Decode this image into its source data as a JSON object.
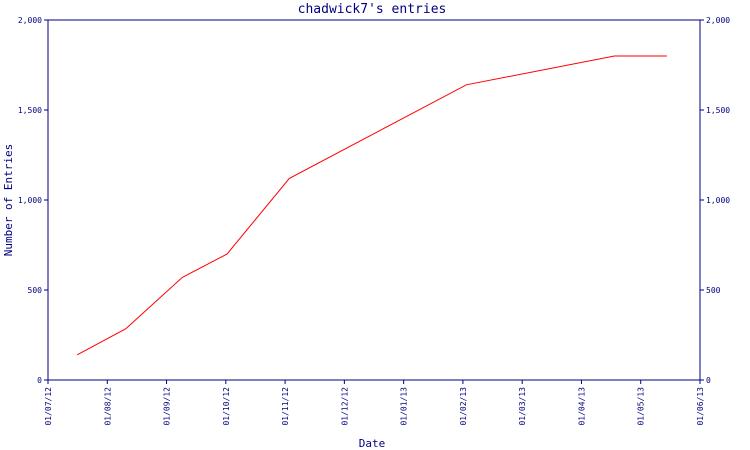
{
  "chart_data": {
    "type": "line",
    "title": "chadwick7's entries",
    "xlabel": "Date",
    "ylabel": "Number of Entries",
    "x_ticks": [
      "01/07/12",
      "01/08/12",
      "01/09/12",
      "01/10/12",
      "01/11/12",
      "01/12/12",
      "01/01/13",
      "01/02/13",
      "01/03/13",
      "01/04/13",
      "01/05/13",
      "01/06/13"
    ],
    "y_ticks": [
      "0",
      "500",
      "1,000",
      "1,500",
      "2,000"
    ],
    "ylim": [
      0,
      2000
    ],
    "xlim": [
      "2012-07-01",
      "2013-06-01"
    ],
    "grid": false,
    "line_color": "#ff0000",
    "axis_color": "#000080",
    "series": [
      {
        "x": [
          "2012-07-16",
          "2012-08-10",
          "2012-09-08",
          "2012-10-01",
          "2012-11-02",
          "2013-02-01",
          "2013-04-18",
          "2013-05-15"
        ],
        "values": [
          140,
          285,
          570,
          700,
          1120,
          1640,
          1800,
          1800
        ]
      }
    ]
  }
}
